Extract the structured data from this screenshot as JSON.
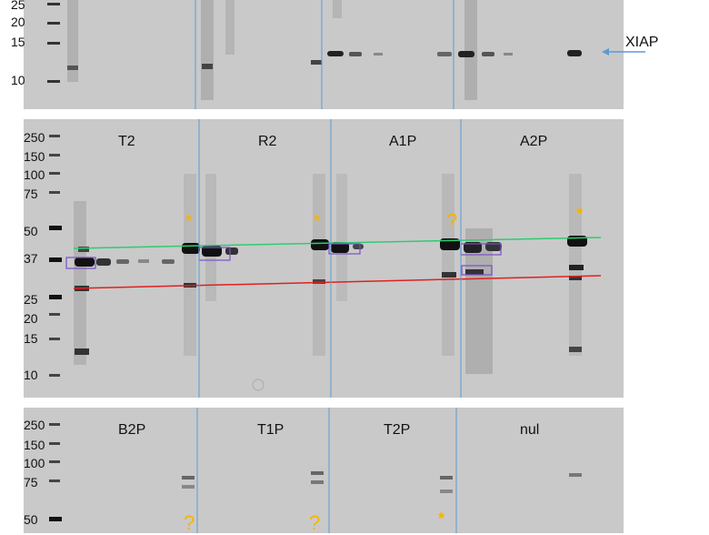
{
  "panel_top": {
    "mw_markers": [
      "25",
      "20",
      "15",
      "10"
    ],
    "target_label": "XIAP"
  },
  "panel_middle": {
    "mw_markers": [
      "250",
      "150",
      "100",
      "75",
      "50",
      "37",
      "25",
      "20",
      "15",
      "10"
    ],
    "lanes": [
      "T2",
      "R2",
      "A1P",
      "A2P"
    ],
    "annotations": [
      "*",
      "*",
      "?",
      "*"
    ]
  },
  "panel_bottom": {
    "mw_markers": [
      "250",
      "150",
      "100",
      "75",
      "50"
    ],
    "lanes": [
      "B2P",
      "T1P",
      "T2P",
      "nul"
    ],
    "annotations": [
      "?",
      "?",
      "*"
    ]
  },
  "colors": {
    "gel": "#c9c9c9",
    "divider": "#5b9bd5",
    "green_line": "#2ecc71",
    "red_line": "#e02020",
    "box": "#7b4fc9",
    "annotation": "#f5b400",
    "arrow": "#5b9bd5"
  }
}
